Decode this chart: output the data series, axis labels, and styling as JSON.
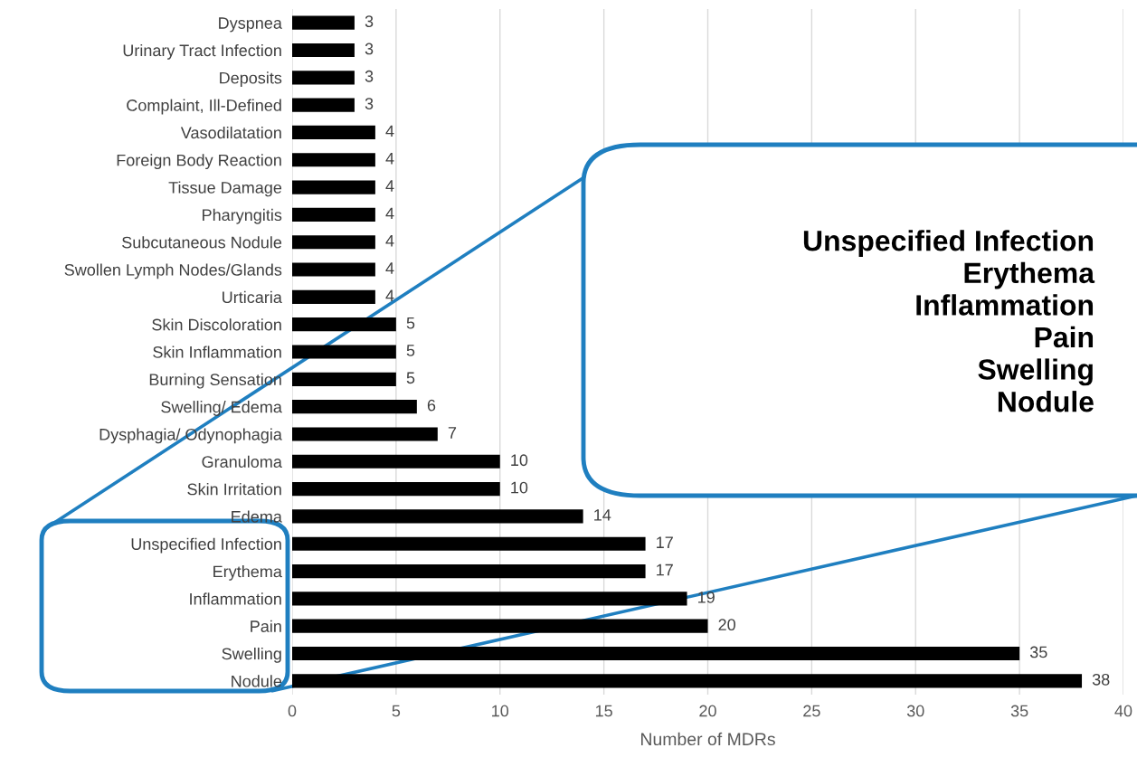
{
  "chart_data": {
    "type": "bar",
    "orientation": "horizontal",
    "categories": [
      "Dyspnea",
      "Urinary Tract Infection",
      "Deposits",
      "Complaint, Ill-Defined",
      "Vasodilatation",
      "Foreign Body Reaction",
      "Tissue Damage",
      "Pharyngitis",
      "Subcutaneous Nodule",
      "Swollen Lymph Nodes/Glands",
      "Urticaria",
      "Skin Discoloration",
      "Skin Inflammation",
      "Burning Sensation",
      "Swelling/ Edema",
      "Dysphagia/ Odynophagia",
      "Granuloma",
      "Skin Irritation",
      "Edema",
      "Unspecified Infection",
      "Erythema",
      "Inflammation",
      "Pain",
      "Swelling",
      "Nodule"
    ],
    "values": [
      3,
      3,
      3,
      3,
      4,
      4,
      4,
      4,
      4,
      4,
      4,
      5,
      5,
      5,
      6,
      7,
      10,
      10,
      14,
      17,
      17,
      19,
      20,
      35,
      38
    ],
    "color": "#000000",
    "xlim": [
      0,
      40
    ],
    "xticks": [
      0,
      5,
      10,
      15,
      20,
      25,
      30,
      35,
      40
    ],
    "xlabel": "Number of MDRs",
    "grid": "x",
    "data_labels": true,
    "annotations": [
      "Unspecified Infection\nErythema\nInflammation\nPain\nSwelling\nNodule"
    ]
  }
}
